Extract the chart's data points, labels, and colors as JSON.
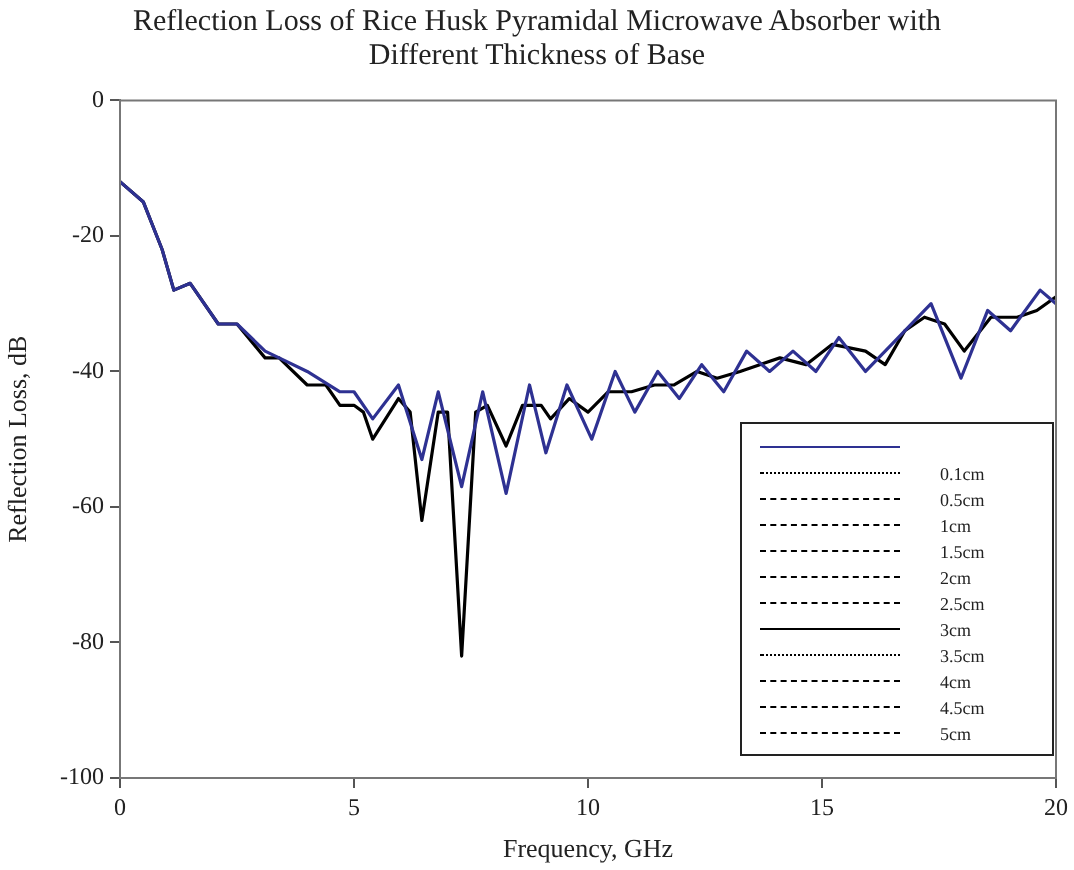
{
  "chart_data": {
    "type": "line",
    "title": "Reflection Loss of Rice Husk Pyramidal Microwave Absorber with Different Thickness of Base",
    "xlabel": "Frequency, GHz",
    "ylabel": "Reflection Loss, dB",
    "x": [
      0,
      0.5,
      0.9,
      1.15,
      1.5,
      2.1,
      2.5,
      3.1,
      3.4,
      4,
      4.4,
      4.7,
      5,
      5.2,
      5.4,
      5.95,
      6.2,
      6.45,
      6.8,
      7,
      7.3,
      7.6,
      7.85,
      8.25,
      8.6,
      9,
      9.2,
      9.6,
      10,
      10.43,
      10.93,
      11.42,
      11.84,
      12.33,
      12.76,
      13.25,
      13.67,
      14.1,
      14.66,
      15.22,
      15.93,
      16.35,
      16.77,
      17.19,
      17.62,
      18.04,
      18.61,
      19.17,
      19.59,
      20
    ],
    "series": [
      {
        "color": "#2e3192",
        "line_style": "solid",
        "x": [
          0,
          0.5,
          0.9,
          1.15,
          1.5,
          2.1,
          2.5,
          3.1,
          3.4,
          4,
          4.7,
          5,
          5.4,
          5.95,
          6.45,
          6.8,
          7.3,
          7.75,
          8.25,
          8.75,
          9.1,
          9.55,
          10.08,
          10.58,
          11,
          11.49,
          11.95,
          12.43,
          12.9,
          13.39,
          13.88,
          14.38,
          14.87,
          15.36,
          15.93,
          16.49,
          17.33,
          17.97,
          18.54,
          19.03,
          19.66,
          20
        ],
        "values": [
          -12,
          -15,
          -22,
          -28,
          -27,
          -33,
          -33,
          -37,
          -38,
          -40,
          -43,
          -43,
          -47,
          -42,
          -53,
          -43,
          -57,
          -43,
          -58,
          -42,
          -52,
          -42,
          -50,
          -40,
          -46,
          -40,
          -44,
          -39,
          -43,
          -37,
          -40,
          -37,
          -40,
          -35,
          -40,
          -36,
          -30,
          -41,
          -31,
          -34,
          -28,
          -30
        ]
      },
      {
        "name": "0.1cm",
        "color": "#000000",
        "line_style": "dotted",
        "values": [
          null,
          null,
          null,
          null,
          null,
          null,
          null,
          null,
          null,
          null,
          null,
          null,
          null,
          null,
          null,
          null,
          null,
          null,
          null,
          null,
          null,
          null,
          null,
          null,
          null,
          null,
          null,
          null,
          null,
          null,
          null,
          null,
          null,
          null,
          null,
          null,
          null,
          null,
          null,
          null,
          null,
          null,
          null,
          null,
          null,
          null,
          null,
          null,
          null,
          null
        ]
      },
      {
        "name": "0.5cm",
        "color": "#000000",
        "line_style": "dashed",
        "values": [
          null,
          null,
          null,
          null,
          null,
          null,
          null,
          null,
          null,
          null,
          null,
          null,
          null,
          null,
          null,
          null,
          null,
          null,
          null,
          null,
          null,
          null,
          null,
          null,
          null,
          null,
          null,
          null,
          null,
          null,
          null,
          null,
          null,
          null,
          null,
          null,
          null,
          null,
          null,
          null,
          null,
          null,
          null,
          null,
          null,
          null,
          null,
          null,
          null,
          null
        ]
      },
      {
        "name": "1cm",
        "color": "#000000",
        "line_style": "dashed",
        "values": [
          null,
          null,
          null,
          null,
          null,
          null,
          null,
          null,
          null,
          null,
          null,
          null,
          null,
          null,
          null,
          null,
          null,
          null,
          null,
          null,
          null,
          null,
          null,
          null,
          null,
          null,
          null,
          null,
          null,
          null,
          null,
          null,
          null,
          null,
          null,
          null,
          null,
          null,
          null,
          null,
          null,
          null,
          null,
          null,
          null,
          null,
          null,
          null,
          null,
          null
        ]
      },
      {
        "name": "1.5cm",
        "color": "#000000",
        "line_style": "dashed",
        "values": [
          null,
          null,
          null,
          null,
          null,
          null,
          null,
          null,
          null,
          null,
          null,
          null,
          null,
          null,
          null,
          null,
          null,
          null,
          null,
          null,
          null,
          null,
          null,
          null,
          null,
          null,
          null,
          null,
          null,
          null,
          null,
          null,
          null,
          null,
          null,
          null,
          null,
          null,
          null,
          null,
          null,
          null,
          null,
          null,
          null,
          null,
          null,
          null,
          null,
          null
        ]
      },
      {
        "name": "2cm",
        "color": "#000000",
        "line_style": "dashed",
        "values": [
          null,
          null,
          null,
          null,
          null,
          null,
          null,
          null,
          null,
          null,
          null,
          null,
          null,
          null,
          null,
          null,
          null,
          null,
          null,
          null,
          null,
          null,
          null,
          null,
          null,
          null,
          null,
          null,
          null,
          null,
          null,
          null,
          null,
          null,
          null,
          null,
          null,
          null,
          null,
          null,
          null,
          null,
          null,
          null,
          null,
          null,
          null,
          null,
          null,
          null
        ]
      },
      {
        "name": "2.5cm",
        "color": "#000000",
        "line_style": "dashed",
        "values": [
          null,
          null,
          null,
          null,
          null,
          null,
          null,
          null,
          null,
          null,
          null,
          null,
          null,
          null,
          null,
          null,
          null,
          null,
          null,
          null,
          null,
          null,
          null,
          null,
          null,
          null,
          null,
          null,
          null,
          null,
          null,
          null,
          null,
          null,
          null,
          null,
          null,
          null,
          null,
          null,
          null,
          null,
          null,
          null,
          null,
          null,
          null,
          null,
          null,
          null
        ]
      },
      {
        "name": "3cm",
        "color": "#000000",
        "line_style": "solid",
        "values": [
          -12,
          -15,
          -22,
          -28,
          -27,
          -33,
          -33,
          -38,
          -38,
          -42,
          -42,
          -45,
          -45,
          -46,
          -50,
          -44,
          -46,
          -62,
          -46,
          -46,
          -82,
          -46,
          -45,
          -51,
          -45,
          -45,
          -47,
          -44,
          -46,
          -43,
          -43,
          -42,
          -42,
          -40,
          -41,
          -40,
          -39,
          -38,
          -39,
          -36,
          -37,
          -39,
          -34,
          -32,
          -33,
          -37,
          -32,
          -32,
          -31,
          -29
        ]
      },
      {
        "name": "3.5cm",
        "color": "#000000",
        "line_style": "dotted",
        "values": [
          null,
          null,
          null,
          null,
          null,
          null,
          null,
          null,
          null,
          null,
          null,
          null,
          null,
          null,
          null,
          null,
          null,
          null,
          null,
          null,
          null,
          null,
          null,
          null,
          null,
          null,
          null,
          null,
          null,
          null,
          null,
          null,
          null,
          null,
          null,
          null,
          null,
          null,
          null,
          null,
          null,
          null,
          null,
          null,
          null,
          null,
          null,
          null,
          null,
          null
        ]
      },
      {
        "name": "4cm",
        "color": "#000000",
        "line_style": "dashed",
        "values": [
          null,
          null,
          null,
          null,
          null,
          null,
          null,
          null,
          null,
          null,
          null,
          null,
          null,
          null,
          null,
          null,
          null,
          null,
          null,
          null,
          null,
          null,
          null,
          null,
          null,
          null,
          null,
          null,
          null,
          null,
          null,
          null,
          null,
          null,
          null,
          null,
          null,
          null,
          null,
          null,
          null,
          null,
          null,
          null,
          null,
          null,
          null,
          null,
          null,
          null
        ]
      },
      {
        "name": "4.5cm",
        "color": "#000000",
        "line_style": "dashed",
        "values": [
          null,
          null,
          null,
          null,
          null,
          null,
          null,
          null,
          null,
          null,
          null,
          null,
          null,
          null,
          null,
          null,
          null,
          null,
          null,
          null,
          null,
          null,
          null,
          null,
          null,
          null,
          null,
          null,
          null,
          null,
          null,
          null,
          null,
          null,
          null,
          null,
          null,
          null,
          null,
          null,
          null,
          null,
          null,
          null,
          null,
          null,
          null,
          null,
          null,
          null
        ]
      },
      {
        "name": "5cm",
        "color": "#000000",
        "line_style": "dashed",
        "values": [
          null,
          null,
          null,
          null,
          null,
          null,
          null,
          null,
          null,
          null,
          null,
          null,
          null,
          null,
          null,
          null,
          null,
          null,
          null,
          null,
          null,
          null,
          null,
          null,
          null,
          null,
          null,
          null,
          null,
          null,
          null,
          null,
          null,
          null,
          null,
          null,
          null,
          null,
          null,
          null,
          null,
          null,
          null,
          null,
          null,
          null,
          null,
          null,
          null,
          null
        ]
      }
    ],
    "xlim": [
      0,
      20
    ],
    "xticks": [
      0,
      5,
      10,
      15,
      20
    ],
    "ylim": [
      -100,
      0
    ],
    "yticks": [
      -100,
      -80,
      -60,
      -40,
      -20,
      0
    ],
    "grid": false,
    "legend": "bottom right",
    "marker": "none"
  }
}
